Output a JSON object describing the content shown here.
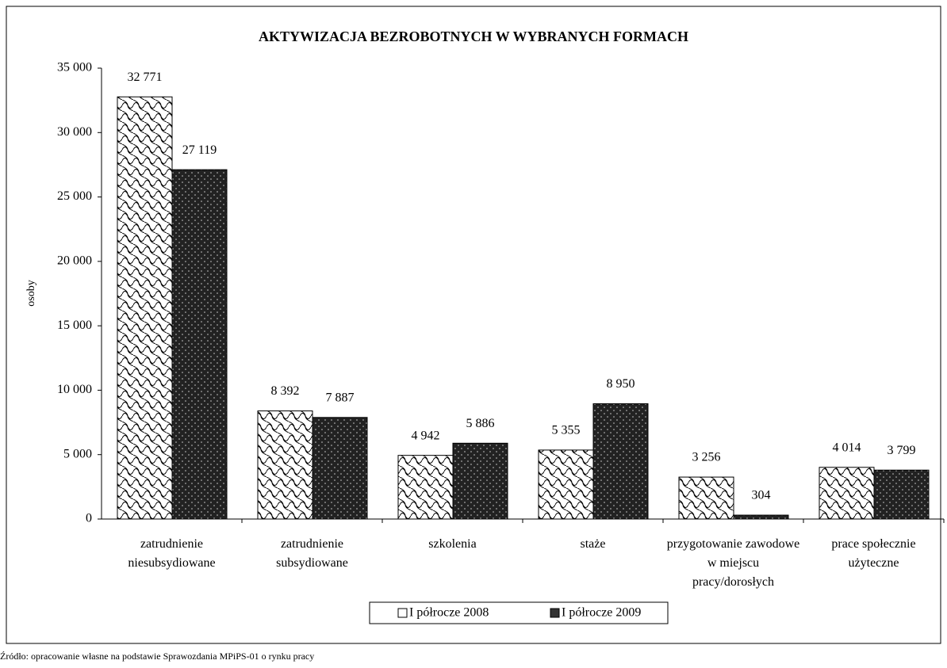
{
  "chart_data": {
    "type": "bar",
    "title": "AKTYWIZACJA BEZROBOTNYCH W WYBRANYCH FORMACH",
    "y_label": "osoby",
    "source": "Źródło: opracowanie własne na podstawie Sprawozdania MPiPS-01 o rynku pracy",
    "categories": [
      "zatrudnienie niesubsydiowane",
      "zatrudnienie subsydiowane",
      "szkolenia",
      "staże",
      "przygotowanie zawodowe w miejscu pracy/dorosłych",
      "prace społecznie użyteczne"
    ],
    "series": [
      {
        "name": "I półrocze 2008",
        "color": "#ffffff",
        "values": [
          32771,
          8392,
          4942,
          5355,
          3256,
          4014
        ],
        "value_labels": [
          "32 771",
          "8 392",
          "4 942",
          "5 355",
          "3 256",
          "4 014"
        ]
      },
      {
        "name": "I półrocze 2009",
        "color": "#333333",
        "values": [
          27119,
          7887,
          5886,
          8950,
          304,
          3799
        ],
        "value_labels": [
          "27 119",
          "7 887",
          "5 886",
          "8 950",
          "304",
          "3 799"
        ]
      }
    ],
    "ylim": [
      0,
      35000
    ],
    "yticks": [
      0,
      {
        "value": 5000,
        "label": "5 000"
      },
      {
        "value": 10000,
        "label": "10 000"
      },
      {
        "value": 15000,
        "label": "15 000"
      },
      {
        "value": 20000,
        "label": "20 000"
      },
      {
        "value": 25000,
        "label": "25 000"
      },
      {
        "value": 30000,
        "label": "30 000"
      },
      {
        "value": 35000,
        "label": "35 000"
      }
    ],
    "legend": "bottom"
  }
}
